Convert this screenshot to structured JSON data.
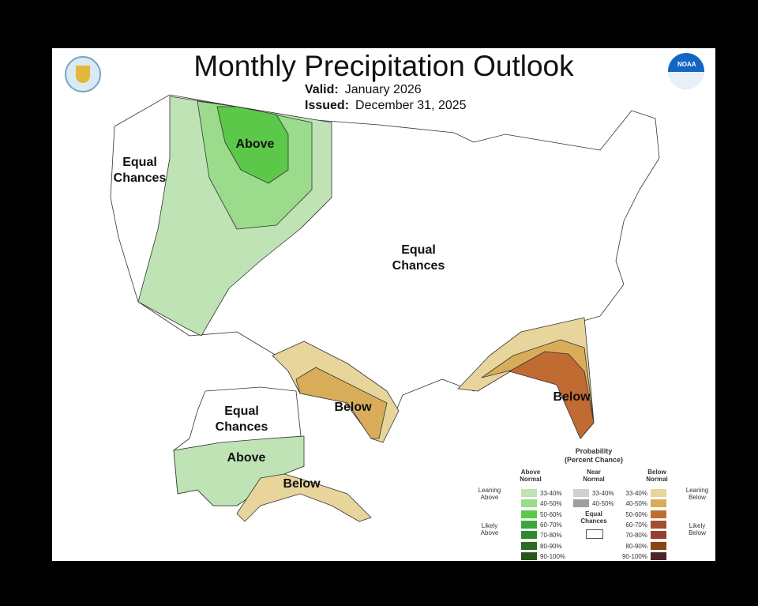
{
  "title": "Monthly Precipitation Outlook",
  "valid": {
    "label": "Valid:",
    "value": "January 2026"
  },
  "issued": {
    "label": "Issued:",
    "value": "December 31, 2025"
  },
  "logos": {
    "left": "Department of Commerce seal",
    "right": "NOAA"
  },
  "map_labels": {
    "west_ec": [
      "Equal",
      "Chances"
    ],
    "north_above": "Above",
    "central_ec": [
      "Equal",
      "Chances"
    ],
    "texas_below": "Below",
    "florida_below": "Below",
    "alaska_ec": [
      "Equal",
      "Chances"
    ],
    "alaska_above": "Above",
    "alaska_below": "Below"
  },
  "legend": {
    "title": "Probability",
    "subtitle": "(Percent Chance)",
    "above_header": [
      "Above",
      "Normal"
    ],
    "near_header": [
      "Near",
      "Normal"
    ],
    "below_header": [
      "Below",
      "Normal"
    ],
    "leaning_above": [
      "Leaning",
      "Above"
    ],
    "likely_above": [
      "Likely",
      "Above"
    ],
    "leaning_below": [
      "Leaning",
      "Below"
    ],
    "likely_below": [
      "Likely",
      "Below"
    ],
    "equal_chances": [
      "Equal",
      "Chances"
    ],
    "above": [
      {
        "range": "33-40%",
        "color": "#bfe3b4"
      },
      {
        "range": "40-50%",
        "color": "#9bdb8c"
      },
      {
        "range": "50-60%",
        "color": "#5cc84a"
      },
      {
        "range": "60-70%",
        "color": "#3aa83a"
      },
      {
        "range": "70-80%",
        "color": "#2e8a2e"
      },
      {
        "range": "80-90%",
        "color": "#2b6b24"
      },
      {
        "range": "90-100%",
        "color": "#28561a"
      }
    ],
    "near": [
      {
        "range": "33-40%",
        "color": "#d0d0d0"
      },
      {
        "range": "40-50%",
        "color": "#9e9e9e"
      }
    ],
    "below": [
      {
        "range": "33-40%",
        "color": "#e8d59c"
      },
      {
        "range": "40-50%",
        "color": "#d9ac5a"
      },
      {
        "range": "50-60%",
        "color": "#c06b32"
      },
      {
        "range": "60-70%",
        "color": "#a24e2e"
      },
      {
        "range": "70-80%",
        "color": "#9a3e32"
      },
      {
        "range": "80-90%",
        "color": "#8a4412"
      },
      {
        "range": "90-100%",
        "color": "#4a2525"
      }
    ]
  }
}
